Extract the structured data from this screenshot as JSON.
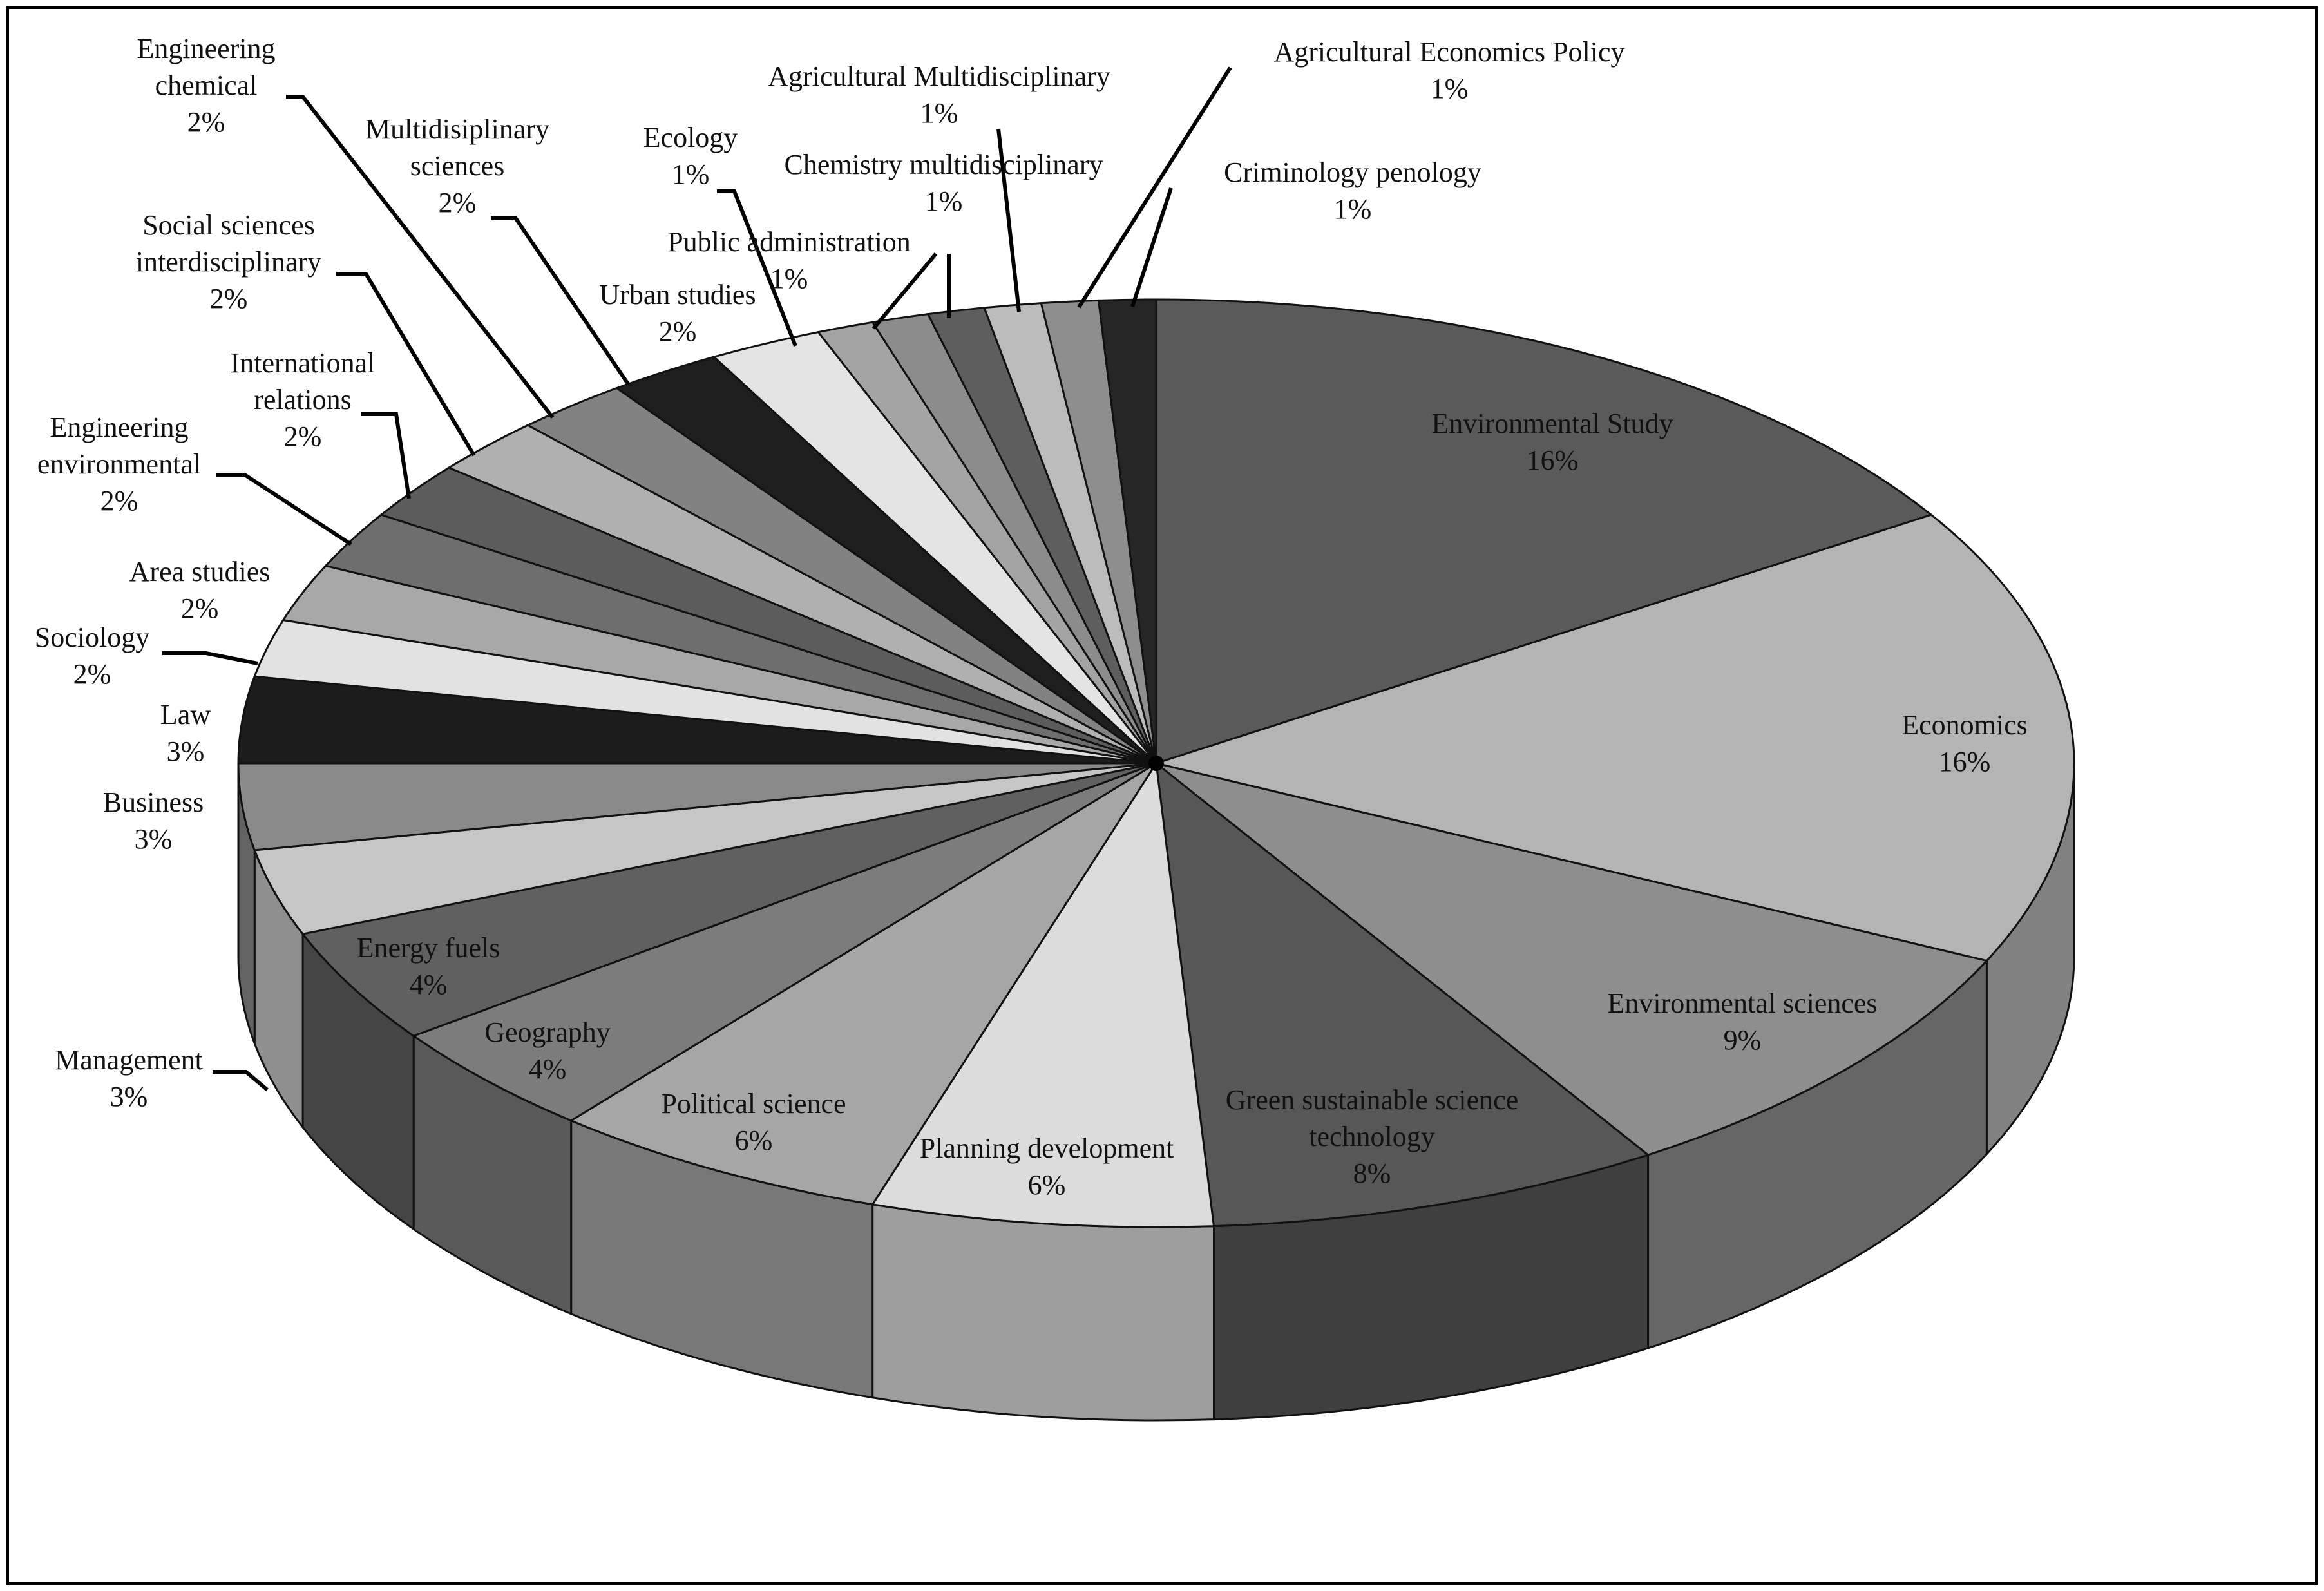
{
  "chart_data": {
    "type": "pie",
    "style": "3d",
    "legend": "none",
    "slices": [
      {
        "label": "Environmental Study",
        "pct_text": "16%",
        "value": 16,
        "color": "#5a5a5a"
      },
      {
        "label": "Economics",
        "pct_text": "16%",
        "value": 16,
        "color": "#b4b4b4"
      },
      {
        "label": "Environmental sciences",
        "pct_text": "9%",
        "value": 9,
        "color": "#8e8e8e"
      },
      {
        "label": "Green sustainable science technology",
        "pct_text": "8%",
        "value": 8,
        "color": "#575757"
      },
      {
        "label": "Planning development",
        "pct_text": "6%",
        "value": 6,
        "color": "#dcdcdc"
      },
      {
        "label": "Political science",
        "pct_text": "6%",
        "value": 6,
        "color": "#a6a6a6"
      },
      {
        "label": "Geography",
        "pct_text": "4%",
        "value": 4,
        "color": "#7c7c7c"
      },
      {
        "label": "Energy fuels",
        "pct_text": "4%",
        "value": 4,
        "color": "#606060"
      },
      {
        "label": "Management",
        "pct_text": "3%",
        "value": 3,
        "color": "#c6c6c6"
      },
      {
        "label": "Business",
        "pct_text": "3%",
        "value": 3,
        "color": "#8a8a8a"
      },
      {
        "label": "Law",
        "pct_text": "3%",
        "value": 3,
        "color": "#1c1c1c"
      },
      {
        "label": "Sociology",
        "pct_text": "2%",
        "value": 2,
        "color": "#e2e2e2"
      },
      {
        "label": "Area studies",
        "pct_text": "2%",
        "value": 2,
        "color": "#a8a8a8"
      },
      {
        "label": "Engineering environmental",
        "pct_text": "2%",
        "value": 2,
        "color": "#6e6e6e"
      },
      {
        "label": "International relations",
        "pct_text": "2%",
        "value": 2,
        "color": "#5c5c5c"
      },
      {
        "label": "Social sciences interdisciplinary",
        "pct_text": "2%",
        "value": 2,
        "color": "#b0b0b0"
      },
      {
        "label": "Engineering chemical",
        "pct_text": "2%",
        "value": 2,
        "color": "#828282"
      },
      {
        "label": "Multidisiplinary sciences",
        "pct_text": "2%",
        "value": 2,
        "color": "#1e1e1e"
      },
      {
        "label": "Urban studies",
        "pct_text": "2%",
        "value": 2,
        "color": "#e4e4e4"
      },
      {
        "label": "Ecology",
        "pct_text": "1%",
        "value": 1,
        "color": "#a4a4a4"
      },
      {
        "label": "Public administration",
        "pct_text": "1%",
        "value": 1,
        "color": "#8c8c8c"
      },
      {
        "label": "Chemistry multidisciplinary",
        "pct_text": "1%",
        "value": 1,
        "color": "#5e5e5e"
      },
      {
        "label": "Agricultural Multidisciplinary",
        "pct_text": "1%",
        "value": 1,
        "color": "#bcbcbc"
      },
      {
        "label": "Agricultural Economics Policy",
        "pct_text": "1%",
        "value": 1,
        "color": "#8e8e8e"
      },
      {
        "label": "Criminology penology",
        "pct_text": "1%",
        "value": 1,
        "color": "#262626"
      }
    ]
  }
}
